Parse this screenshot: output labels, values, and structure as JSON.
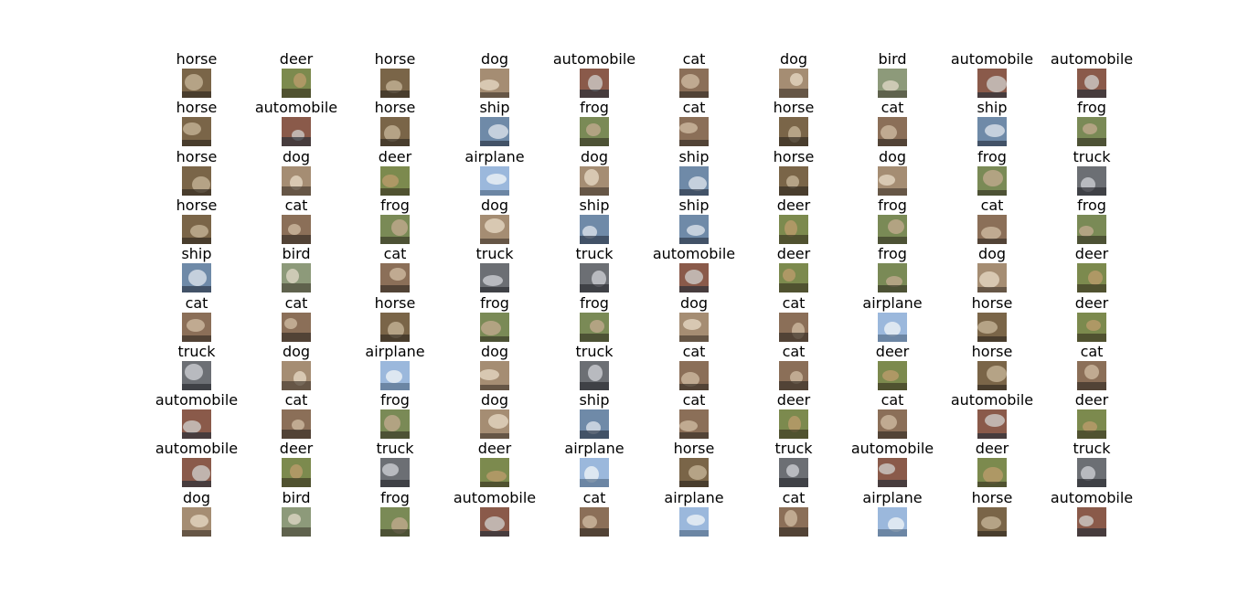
{
  "grid": {
    "rows": [
      [
        "horse",
        "deer",
        "horse",
        "dog",
        "automobile",
        "cat",
        "dog",
        "bird",
        "automobile",
        "automobile"
      ],
      [
        "horse",
        "automobile",
        "horse",
        "ship",
        "frog",
        "cat",
        "horse",
        "cat",
        "ship",
        "frog"
      ],
      [
        "horse",
        "dog",
        "deer",
        "airplane",
        "dog",
        "ship",
        "horse",
        "dog",
        "frog",
        "truck"
      ],
      [
        "horse",
        "cat",
        "frog",
        "dog",
        "ship",
        "ship",
        "deer",
        "frog",
        "cat",
        "frog"
      ],
      [
        "ship",
        "bird",
        "cat",
        "truck",
        "truck",
        "automobile",
        "deer",
        "frog",
        "dog",
        "deer"
      ],
      [
        "cat",
        "cat",
        "horse",
        "frog",
        "frog",
        "dog",
        "cat",
        "airplane",
        "horse",
        "deer"
      ],
      [
        "truck",
        "dog",
        "airplane",
        "dog",
        "truck",
        "cat",
        "cat",
        "deer",
        "horse",
        "cat"
      ],
      [
        "automobile",
        "cat",
        "frog",
        "dog",
        "ship",
        "cat",
        "deer",
        "cat",
        "automobile",
        "deer"
      ],
      [
        "automobile",
        "deer",
        "truck",
        "deer",
        "airplane",
        "horse",
        "truck",
        "automobile",
        "deer",
        "truck"
      ],
      [
        "dog",
        "bird",
        "frog",
        "automobile",
        "cat",
        "airplane",
        "cat",
        "airplane",
        "horse",
        "automobile"
      ]
    ]
  },
  "thumb_colors": {
    "airplane": [
      "#9bb8dc",
      "#e9eef4",
      "#59708c"
    ],
    "automobile": [
      "#8a5a4a",
      "#c9c4bf",
      "#2b2f38"
    ],
    "bird": [
      "#8d9a7a",
      "#d8d2c0",
      "#4b4a3a"
    ],
    "cat": [
      "#8b6f58",
      "#c9b59b",
      "#3b3028"
    ],
    "deer": [
      "#7c8a4e",
      "#b79a6a",
      "#3d3a24"
    ],
    "dog": [
      "#a58d73",
      "#e0d2bd",
      "#4c3f33"
    ],
    "frog": [
      "#7a8a56",
      "#bca789",
      "#3a3a28"
    ],
    "horse": [
      "#7a6548",
      "#bfae92",
      "#352c22"
    ],
    "ship": [
      "#6f8aa8",
      "#d5dce6",
      "#2f3b4c"
    ],
    "truck": [
      "#6c6f74",
      "#c6c8cc",
      "#2c2e33"
    ]
  }
}
